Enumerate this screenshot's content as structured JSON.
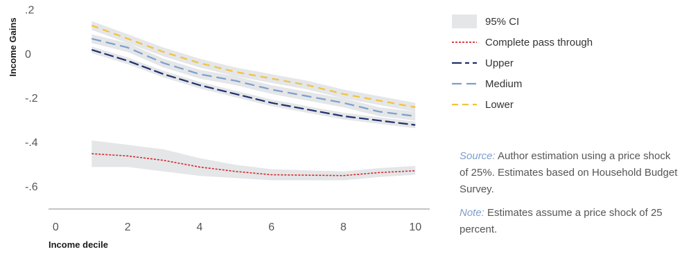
{
  "chart_data": {
    "type": "line",
    "xlabel": "Income decile",
    "ylabel": "Income Gains",
    "xlim": [
      -0.2,
      10.4
    ],
    "ylim": [
      -0.7,
      0.22
    ],
    "xticks": [
      0,
      2,
      4,
      6,
      8,
      10
    ],
    "yticks": [
      0.2,
      0,
      -0.2,
      -0.4,
      -0.6
    ],
    "ytick_labels": [
      ".2",
      "0",
      "-.2",
      "-.4",
      "-.6"
    ],
    "x": [
      1,
      2,
      3,
      4,
      5,
      6,
      7,
      8,
      9,
      10
    ],
    "series": [
      {
        "name": "Complete pass through",
        "color": "#d7262b",
        "dash": "3,2",
        "width": 1.6,
        "values": [
          -0.45,
          -0.46,
          -0.48,
          -0.51,
          -0.53,
          -0.545,
          -0.547,
          -0.549,
          -0.535,
          -0.527
        ],
        "ci": [
          [
            -0.39,
            -0.51
          ],
          [
            -0.41,
            -0.51
          ],
          [
            -0.43,
            -0.53
          ],
          [
            -0.47,
            -0.55
          ],
          [
            -0.5,
            -0.56
          ],
          [
            -0.52,
            -0.57
          ],
          [
            -0.525,
            -0.57
          ],
          [
            -0.53,
            -0.57
          ],
          [
            -0.515,
            -0.555
          ],
          [
            -0.505,
            -0.545
          ]
        ]
      },
      {
        "name": "Upper",
        "color": "#1f2f6b",
        "dash": "14,5",
        "width": 2.2,
        "values": [
          0.02,
          -0.03,
          -0.09,
          -0.14,
          -0.18,
          -0.22,
          -0.25,
          -0.28,
          -0.3,
          -0.32
        ],
        "ci": [
          [
            0.035,
            0.005
          ],
          [
            -0.015,
            -0.045
          ],
          [
            -0.075,
            -0.105
          ],
          [
            -0.125,
            -0.155
          ],
          [
            -0.165,
            -0.195
          ],
          [
            -0.205,
            -0.235
          ],
          [
            -0.235,
            -0.265
          ],
          [
            -0.265,
            -0.295
          ],
          [
            -0.285,
            -0.315
          ],
          [
            -0.305,
            -0.335
          ]
        ]
      },
      {
        "name": "Medium",
        "color": "#7d9ecc",
        "dash": "14,7",
        "width": 2.2,
        "values": [
          0.07,
          0.03,
          -0.04,
          -0.09,
          -0.12,
          -0.16,
          -0.19,
          -0.22,
          -0.26,
          -0.28
        ],
        "ci": [
          [
            0.09,
            0.05
          ],
          [
            0.05,
            0.01
          ],
          [
            -0.02,
            -0.06
          ],
          [
            -0.07,
            -0.11
          ],
          [
            -0.1,
            -0.14
          ],
          [
            -0.14,
            -0.18
          ],
          [
            -0.17,
            -0.21
          ],
          [
            -0.2,
            -0.24
          ],
          [
            -0.24,
            -0.28
          ],
          [
            -0.26,
            -0.3
          ]
        ]
      },
      {
        "name": "Lower",
        "color": "#f2c23a",
        "dash": "10,7",
        "width": 2.2,
        "values": [
          0.13,
          0.07,
          0.01,
          -0.04,
          -0.08,
          -0.11,
          -0.14,
          -0.18,
          -0.21,
          -0.24
        ],
        "ci": [
          [
            0.15,
            0.11
          ],
          [
            0.09,
            0.05
          ],
          [
            0.03,
            -0.01
          ],
          [
            -0.02,
            -0.06
          ],
          [
            -0.06,
            -0.1
          ],
          [
            -0.09,
            -0.13
          ],
          [
            -0.12,
            -0.16
          ],
          [
            -0.16,
            -0.2
          ],
          [
            -0.19,
            -0.23
          ],
          [
            -0.22,
            -0.26
          ]
        ]
      }
    ],
    "legend": {
      "placement": "right",
      "items": [
        "95% CI",
        "Complete pass through",
        "Upper",
        "Medium",
        "Lower"
      ]
    },
    "band_color": "#e4e6e8",
    "grid": false
  },
  "notes": {
    "source_key": "Source:",
    "source_text": " Author estimation using a price shock of 25%. Estimates based on House­hold Budget Survey.",
    "note_key": "Note:",
    "note_text": " Estimates assume a price shock of 25 percent."
  }
}
